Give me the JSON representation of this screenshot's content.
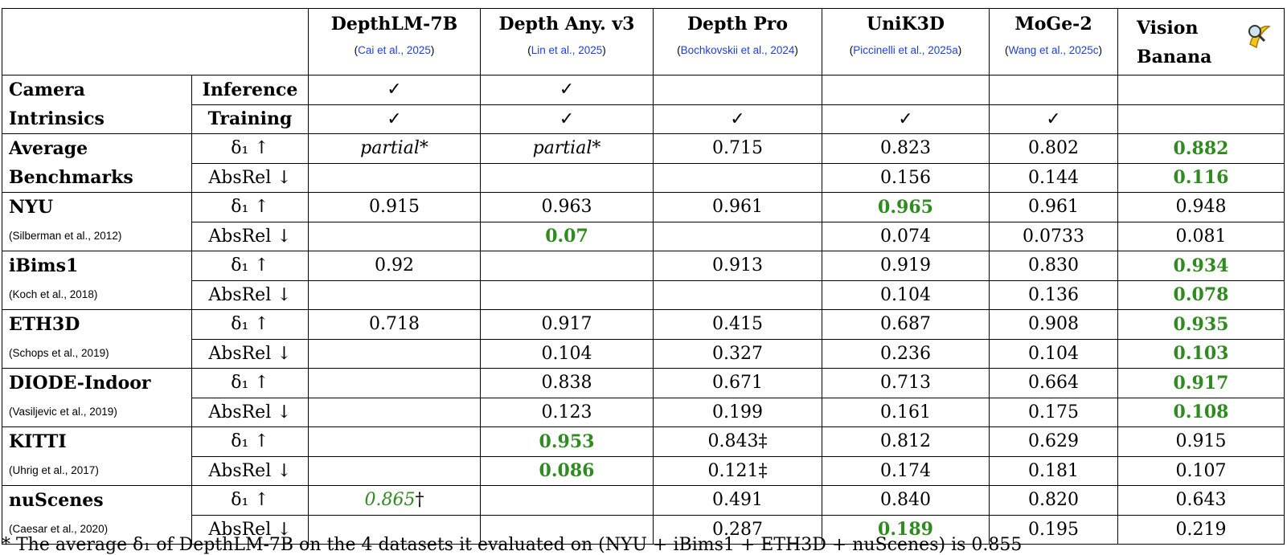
{
  "header": {
    "columns": [
      {
        "name": "DepthLM-7B",
        "cite": "(Cai et al., 2025)"
      },
      {
        "name": "Depth Any. v3",
        "cite": "(Lin et al., 2025)"
      },
      {
        "name": "Depth Pro",
        "cite": "(Bochkovskii et al., 2024)"
      },
      {
        "name": "UniK3D",
        "cite": "(Piccinelli et al., 2025a)"
      },
      {
        "name": "MoGe-2",
        "cite": "(Wang et al., 2025c)"
      },
      {
        "name": "Vision Banana"
      }
    ]
  },
  "green": "#2f8a1f",
  "groups": [
    {
      "label": [
        "Camera",
        "Intrinsics"
      ],
      "metric_bold": true,
      "rows": [
        {
          "metric": "Inference",
          "cells": [
            "✓",
            "✓",
            null,
            null,
            null,
            null
          ]
        },
        {
          "metric": "Training",
          "cells": [
            "✓",
            "✓",
            "✓",
            "✓",
            "✓",
            null
          ]
        }
      ]
    },
    {
      "label": [
        "Average",
        "Benchmarks"
      ],
      "rows": [
        {
          "metric": "δ₁ ↑",
          "cells": [
            {
              "t": "partial*",
              "italic": true
            },
            {
              "t": "partial*",
              "italic": true
            },
            "0.715",
            "0.823",
            "0.802",
            {
              "t": "0.882",
              "best": true
            }
          ]
        },
        {
          "metric": "AbsRel ↓",
          "cells": [
            null,
            null,
            null,
            "0.156",
            "0.144",
            {
              "t": "0.116",
              "best": true
            }
          ]
        }
      ]
    },
    {
      "label": [
        "NYU"
      ],
      "cite": "(Silberman et al., 2012)",
      "rows": [
        {
          "metric": "δ₁ ↑",
          "cells": [
            "0.915",
            "0.963",
            "0.961",
            {
              "t": "0.965",
              "best": true
            },
            "0.961",
            "0.948"
          ]
        },
        {
          "metric": "AbsRel ↓",
          "cells": [
            null,
            {
              "t": "0.07",
              "best": true
            },
            null,
            "0.074",
            "0.0733",
            "0.081"
          ]
        }
      ]
    },
    {
      "label": [
        "iBims1"
      ],
      "cite": "(Koch et al., 2018)",
      "rows": [
        {
          "metric": "δ₁ ↑",
          "cells": [
            "0.92",
            null,
            "0.913",
            "0.919",
            "0.830",
            {
              "t": "0.934",
              "best": true
            }
          ]
        },
        {
          "metric": "AbsRel ↓",
          "cells": [
            null,
            null,
            null,
            "0.104",
            "0.136",
            {
              "t": "0.078",
              "best": true
            }
          ]
        }
      ]
    },
    {
      "label": [
        "ETH3D"
      ],
      "cite": "(Schops et al., 2019)",
      "rows": [
        {
          "metric": "δ₁ ↑",
          "cells": [
            "0.718",
            "0.917",
            "0.415",
            "0.687",
            "0.908",
            {
              "t": "0.935",
              "best": true
            }
          ]
        },
        {
          "metric": "AbsRel ↓",
          "cells": [
            null,
            "0.104",
            "0.327",
            "0.236",
            "0.104",
            {
              "t": "0.103",
              "best": true
            }
          ]
        }
      ]
    },
    {
      "label": [
        "DIODE-Indoor"
      ],
      "cite": "(Vasiljevic et al., 2019)",
      "rows": [
        {
          "metric": "δ₁ ↑",
          "cells": [
            null,
            "0.838",
            "0.671",
            "0.713",
            "0.664",
            {
              "t": "0.917",
              "best": true
            }
          ]
        },
        {
          "metric": "AbsRel ↓",
          "cells": [
            null,
            "0.123",
            "0.199",
            "0.161",
            "0.175",
            {
              "t": "0.108",
              "best": true
            }
          ]
        }
      ]
    },
    {
      "label": [
        "KITTI"
      ],
      "cite": "(Uhrig et al., 2017)",
      "rows": [
        {
          "metric": "δ₁ ↑",
          "cells": [
            null,
            {
              "t": "0.953",
              "best": true
            },
            "0.843‡",
            "0.812",
            "0.629",
            "0.915"
          ]
        },
        {
          "metric": "AbsRel ↓",
          "cells": [
            null,
            {
              "t": "0.086",
              "best": true
            },
            "0.121‡",
            "0.174",
            "0.181",
            "0.107"
          ]
        }
      ]
    },
    {
      "label": [
        "nuScenes"
      ],
      "cite": "(Caesar et al., 2020)",
      "rows": [
        {
          "metric": "δ₁ ↑",
          "cells": [
            {
              "t": "0.865",
              "italic": true,
              "green": true,
              "mark": "†"
            },
            null,
            "0.491",
            "0.840",
            "0.820",
            "0.643"
          ]
        },
        {
          "metric": "AbsRel ↓",
          "cells": [
            null,
            null,
            "0.287",
            {
              "t": "0.189",
              "best": true
            },
            "0.195",
            "0.219"
          ]
        }
      ]
    }
  ],
  "footnote": "* The average δ₁ of DepthLM-7B on the 4 datasets it evaluated on (NYU + iBims1 + ETH3D + nuScenes) is 0.855"
}
